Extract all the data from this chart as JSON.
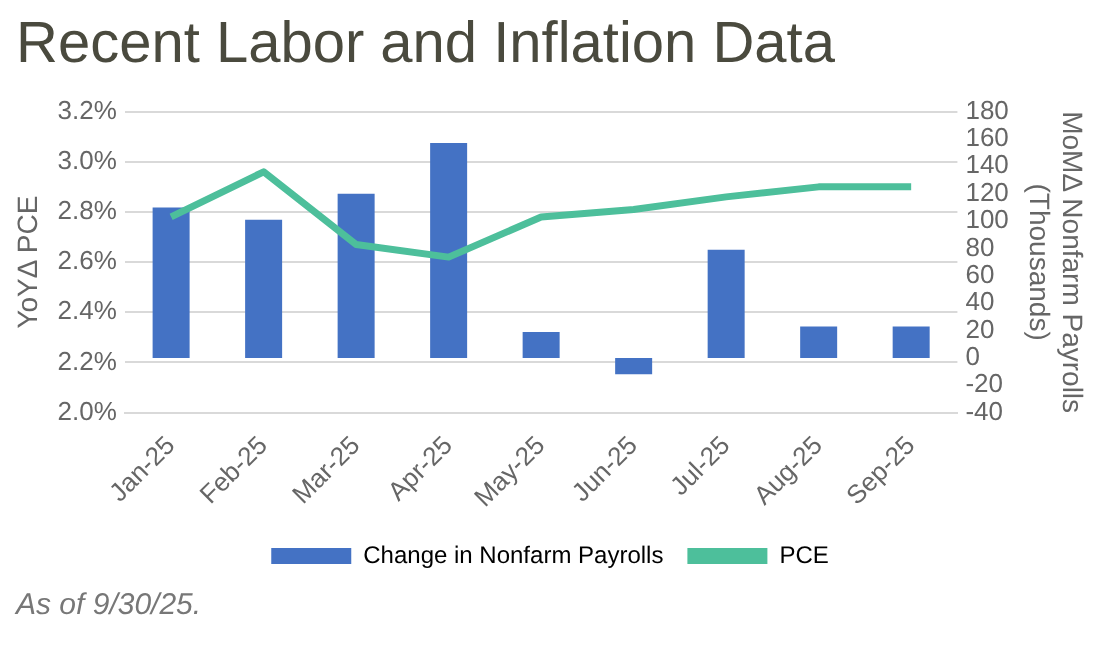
{
  "chart_data": {
    "type": "bar",
    "title": "Recent Labor and Inflation Data",
    "ylabel": "YoYΔ PCE",
    "y2label": "MoMΔ Nonfarm Payrolls\n(Thousands)",
    "annotations": [
      "As of 9/30/25."
    ],
    "categories": [
      "Jan-25",
      "Feb-25",
      "Mar-25",
      "Apr-25",
      "May-25",
      "Jun-25",
      "Jul-25",
      "Aug-25",
      "Sep-25"
    ],
    "series": [
      {
        "name": "Change in Nonfarm Payrolls",
        "axis": "y2",
        "color": "#4472c4",
        "values": [
          110,
          101,
          120,
          157,
          19,
          -12,
          79,
          23,
          23
        ]
      },
      {
        "name": "PCE",
        "type": "line",
        "color": "#4dbf9b",
        "values": [
          2.78,
          2.96,
          2.67,
          2.62,
          2.78,
          2.81,
          2.86,
          2.9,
          2.9
        ]
      }
    ],
    "ylim": [
      2.0,
      3.2
    ],
    "yticks": [
      {
        "value": 2.0,
        "label": "2.0%"
      },
      {
        "value": 2.2,
        "label": "2.2%"
      },
      {
        "value": 2.4,
        "label": "2.4%"
      },
      {
        "value": 2.6,
        "label": "2.6%"
      },
      {
        "value": 2.8,
        "label": "2.8%"
      },
      {
        "value": 3.0,
        "label": "3.0%"
      },
      {
        "value": 3.2,
        "label": "3.2%"
      }
    ],
    "y2lim": [
      -40,
      180
    ],
    "y2ticks": [
      -40,
      -20,
      0,
      20,
      40,
      60,
      80,
      100,
      120,
      140,
      160,
      180
    ],
    "grid": "y",
    "legend": "bottom",
    "marker": "none"
  }
}
